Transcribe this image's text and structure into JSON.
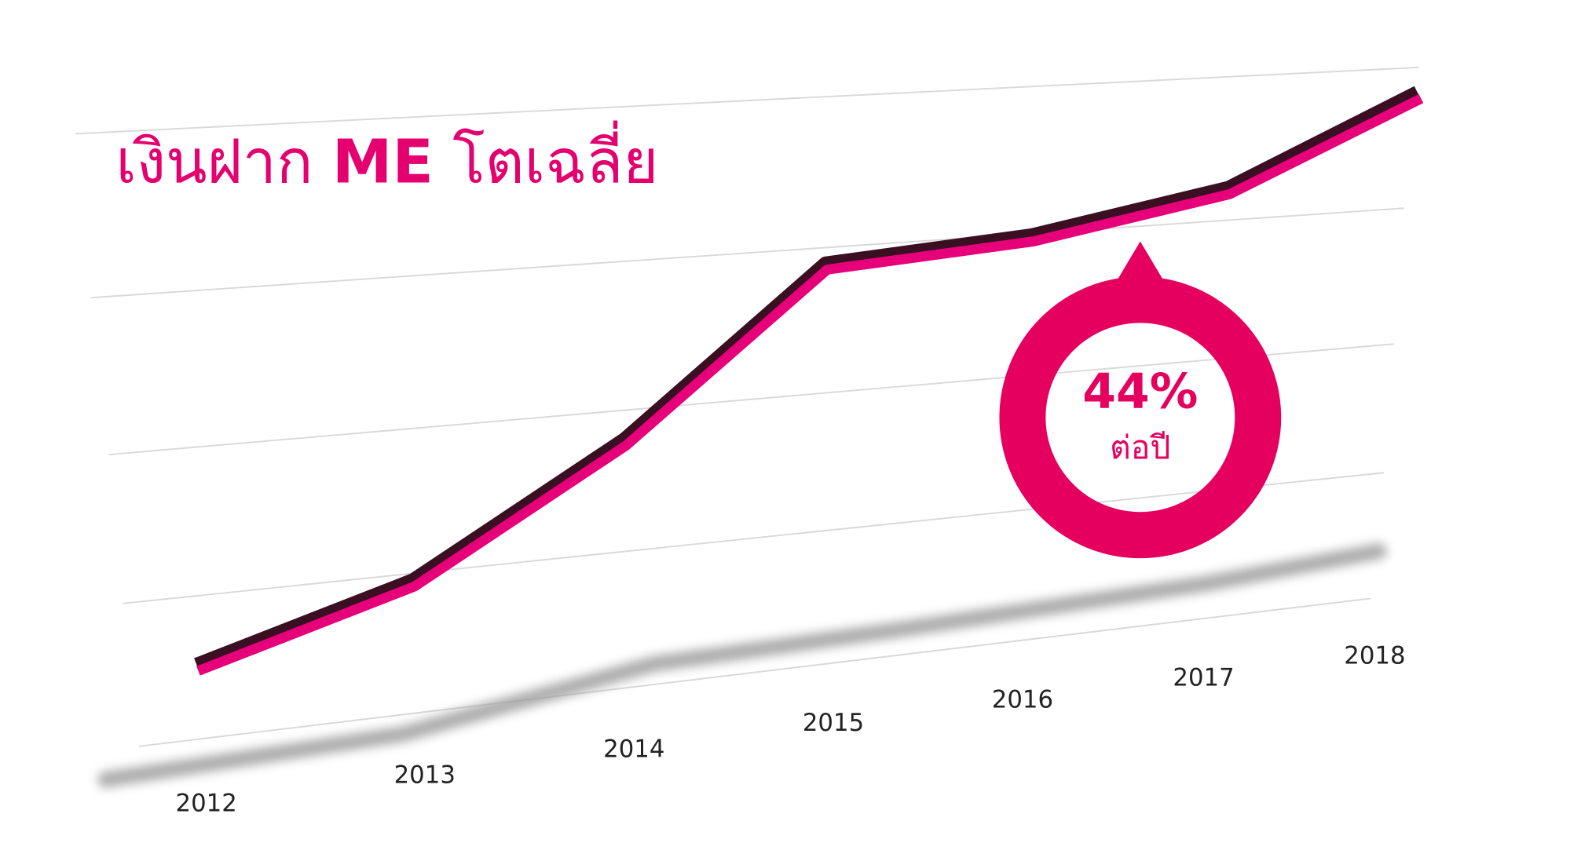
{
  "chart_data": {
    "type": "line",
    "title_parts": [
      "เงินฝาก",
      "ME",
      "โตเฉลี่ย"
    ],
    "categories": [
      "2012",
      "2013",
      "2014",
      "2015",
      "2016",
      "2017",
      "2018"
    ],
    "annotation": "44%",
    "annotation_caption": "ต่อปี"
  }
}
